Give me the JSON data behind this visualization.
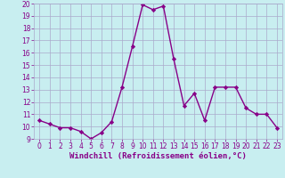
{
  "x": [
    0,
    1,
    2,
    3,
    4,
    5,
    6,
    7,
    8,
    9,
    10,
    11,
    12,
    13,
    14,
    15,
    16,
    17,
    18,
    19,
    20,
    21,
    22,
    23
  ],
  "y": [
    10.5,
    10.2,
    9.9,
    9.9,
    9.6,
    9.0,
    9.5,
    10.4,
    13.2,
    16.5,
    19.9,
    19.5,
    19.8,
    15.5,
    11.7,
    12.7,
    10.5,
    13.2,
    13.2,
    13.2,
    11.5,
    11.0,
    11.0,
    9.9
  ],
  "line_color": "#880088",
  "marker": "D",
  "marker_size": 2.2,
  "bg_color": "#c8eef0",
  "grid_color": "#aaaacc",
  "xlabel": "Windchill (Refroidissement éolien,°C)",
  "xlabel_fontsize": 6.5,
  "ylim": [
    9,
    20
  ],
  "xlim": [
    -0.5,
    23.5
  ],
  "yticks": [
    9,
    10,
    11,
    12,
    13,
    14,
    15,
    16,
    17,
    18,
    19,
    20
  ],
  "xticks": [
    0,
    1,
    2,
    3,
    4,
    5,
    6,
    7,
    8,
    9,
    10,
    11,
    12,
    13,
    14,
    15,
    16,
    17,
    18,
    19,
    20,
    21,
    22,
    23
  ],
  "tick_fontsize": 5.5,
  "line_width": 1.0
}
